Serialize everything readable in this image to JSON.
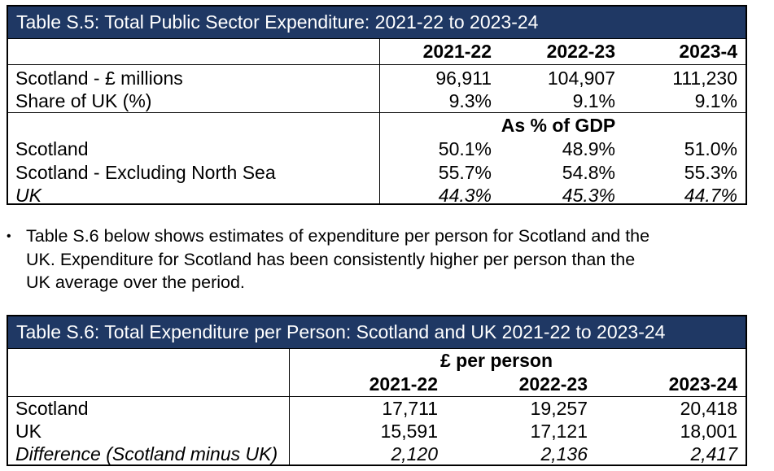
{
  "table_s5": {
    "title": "Table S.5: Total Public Sector Expenditure: 2021-22 to 2023-24",
    "headers": [
      "2021-22",
      "2022-23",
      "2023-4"
    ],
    "section2_header": "As % of GDP",
    "rows": [
      {
        "label": "Scotland - £ millions",
        "values": [
          "96,911",
          "104,907",
          "111,230"
        ]
      },
      {
        "label": "Share of UK (%)",
        "values": [
          "9.3%",
          "9.1%",
          "9.1%"
        ]
      },
      {
        "label": "Scotland",
        "values": [
          "50.1%",
          "48.9%",
          "51.0%"
        ]
      },
      {
        "label": "Scotland - Excluding North Sea",
        "values": [
          "55.7%",
          "54.8%",
          "55.3%"
        ]
      },
      {
        "label": "UK",
        "values": [
          "44.3%",
          "45.3%",
          "44.7%"
        ]
      }
    ]
  },
  "paragraph": {
    "bullet": "•",
    "lines": [
      "Table S.6 below shows estimates of expenditure per person for Scotland and the",
      "UK. Expenditure for Scotland has been consistently higher per person than the",
      "UK average over the period."
    ]
  },
  "table_s6": {
    "title": "Table S.6: Total Expenditure per Person: Scotland and UK 2021-22 to 2023-24",
    "group_header": "£ per person",
    "headers": [
      "2021-22",
      "2022-23",
      "2023-24"
    ],
    "rows": [
      {
        "label": "Scotland",
        "values": [
          "17,711",
          "19,257",
          "20,418"
        ]
      },
      {
        "label": "UK",
        "values": [
          "15,591",
          "17,121",
          "18,001"
        ]
      },
      {
        "label": "Difference (Scotland minus UK)",
        "values": [
          "2,120",
          "2,136",
          "2,417"
        ]
      }
    ]
  }
}
